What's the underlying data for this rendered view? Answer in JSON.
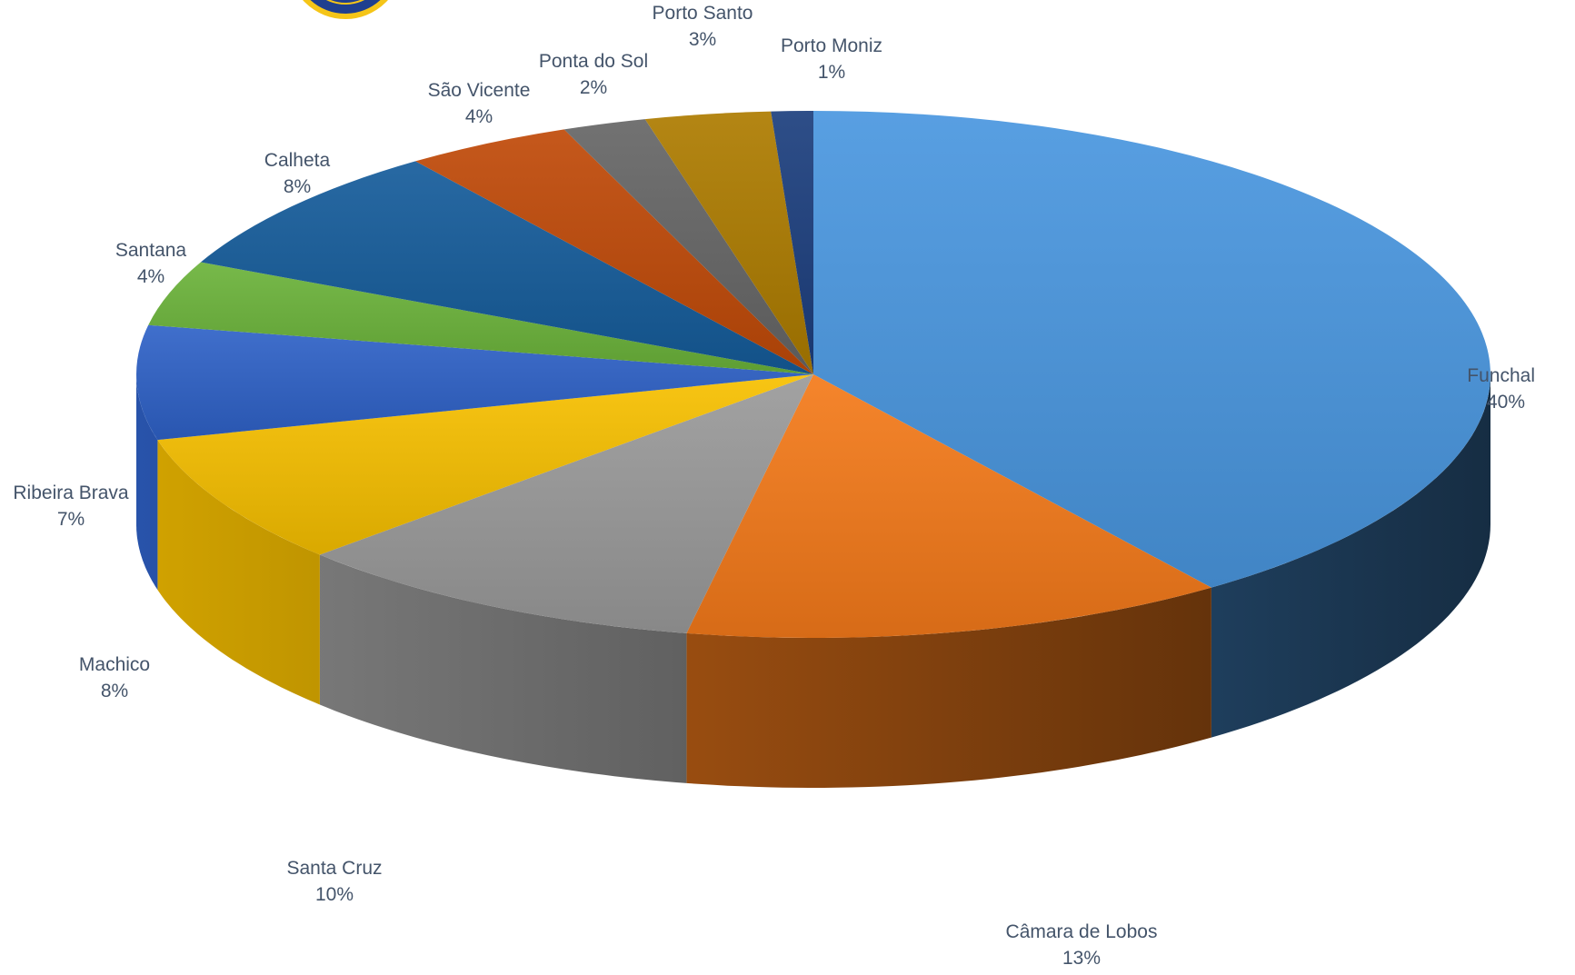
{
  "colors": {
    "funchal": "#4a97e0",
    "camara_de_lobos": "#f47a1a",
    "santa_cruz": "#9a9a9a",
    "machico": "#f7c000",
    "ribeira_brava": "#2f62c8",
    "santana": "#6bb33a",
    "calheta": "#155c9b",
    "sao_vicente": "#c04a08",
    "ponta_do_sol": "#666666",
    "porto_santo": "#ad7c00",
    "porto_moniz": "#1c3f7e",
    "label_text": "#44546a",
    "logo_ring": "#f5c518",
    "logo_fill": "#1f3f8f"
  },
  "logo": {
    "icon": "emblem-icon"
  },
  "chart_data": {
    "type": "pie",
    "variant": "3d",
    "label_position": "outside",
    "title": "",
    "slices": [
      {
        "name": "Funchal",
        "value": 40,
        "label": "40%",
        "color": "#4a97e0"
      },
      {
        "name": "Câmara de Lobos",
        "value": 13,
        "label": "13%",
        "color": "#f47a1a"
      },
      {
        "name": "Santa Cruz",
        "value": 10,
        "label": "10%",
        "color": "#9a9a9a"
      },
      {
        "name": "Machico",
        "value": 8,
        "label": "8%",
        "color": "#f7c000"
      },
      {
        "name": "Ribeira Brava",
        "value": 7,
        "label": "7%",
        "color": "#2f62c8"
      },
      {
        "name": "Santana",
        "value": 4,
        "label": "4%",
        "color": "#6bb33a"
      },
      {
        "name": "Calheta",
        "value": 8,
        "label": "8%",
        "color": "#155c9b"
      },
      {
        "name": "São Vicente",
        "value": 4,
        "label": "4%",
        "color": "#c04a08"
      },
      {
        "name": "Ponta do Sol",
        "value": 2,
        "label": "2%",
        "color": "#666666"
      },
      {
        "name": "Porto Santo",
        "value": 3,
        "label": "3%",
        "color": "#ad7c00"
      },
      {
        "name": "Porto Moniz",
        "value": 1,
        "label": "1%",
        "color": "#1c3f7e"
      }
    ]
  }
}
